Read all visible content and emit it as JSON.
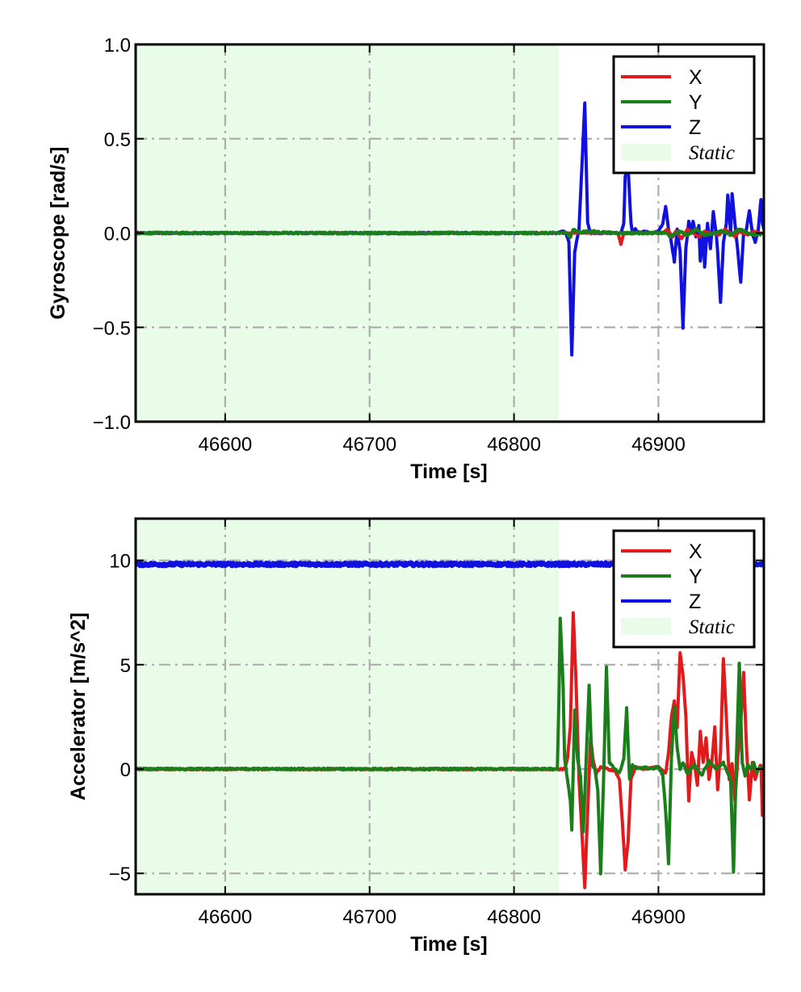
{
  "chart_data": [
    {
      "type": "line",
      "xlabel": "Time [s]",
      "ylabel": "Gyroscope [rad/s]",
      "xlim": [
        46538,
        46973
      ],
      "ylim": [
        -1.0,
        1.0
      ],
      "xticks": [
        46600,
        46700,
        46800,
        46900
      ],
      "xtick_labels": [
        "46600",
        "46700",
        "46800",
        "46900"
      ],
      "yticks": [
        -1.0,
        -0.5,
        0.0,
        0.5,
        1.0
      ],
      "ytick_labels": [
        "−1.0",
        "−0.5",
        "0.0",
        "0.5",
        "1.0"
      ],
      "grid": true,
      "legend_position": "top-right",
      "static_region": {
        "label": "Static",
        "x_start": 46538,
        "x_end": 46831,
        "color": "#e8fce8"
      },
      "series": [
        {
          "name": "X",
          "color": "#e31a1c",
          "x": [
            46538,
            46872,
            46874,
            46876,
            46878,
            46903,
            46906,
            46910,
            46912,
            46916,
            46920,
            46924,
            46928,
            46932,
            46936,
            46942,
            46946,
            46950,
            46953,
            46956,
            46958,
            46962,
            46966,
            46970,
            46973
          ],
          "y": [
            0.0,
            0.0,
            -0.06,
            0.0,
            0.0,
            0.0,
            0.02,
            -0.02,
            0.01,
            -0.03,
            0.02,
            0.0,
            -0.02,
            0.01,
            0.0,
            -0.01,
            0.02,
            0.0,
            -0.02,
            0.01,
            0.0,
            -0.01,
            0.01,
            0.0,
            0.0
          ]
        },
        {
          "name": "Y",
          "color": "#1a7f1a",
          "x": [
            46538,
            46836,
            46839,
            46841,
            46846,
            46850,
            46870,
            46905,
            46909,
            46914,
            46920,
            46926,
            46932,
            46938,
            46944,
            46950,
            46956,
            46962,
            46968,
            46973
          ],
          "y": [
            0.0,
            0.0,
            -0.02,
            0.02,
            0.0,
            0.01,
            0.0,
            0.0,
            -0.02,
            0.01,
            -0.01,
            0.02,
            -0.01,
            0.0,
            0.01,
            -0.01,
            0.02,
            0.0,
            -0.01,
            0.0
          ],
          "noise": 0.005
        },
        {
          "name": "Z",
          "color": "#1010e0",
          "x": [
            46538,
            46831,
            46833,
            46836,
            46838,
            46840,
            46842,
            46845,
            46847,
            46849,
            46851,
            46853,
            46874,
            46876,
            46877,
            46879,
            46881,
            46882,
            46884,
            46886,
            46890,
            46895,
            46900,
            46903,
            46905,
            46907,
            46909,
            46911,
            46913,
            46915,
            46917,
            46919,
            46921,
            46923,
            46924,
            46926,
            46928,
            46929,
            46931,
            46932,
            46934,
            46936,
            46938,
            46940,
            46941,
            46943,
            46945,
            46947,
            46948,
            46950,
            46951,
            46953,
            46955,
            46957,
            46959,
            46961,
            46963,
            46965,
            46967,
            46969,
            46971,
            46972,
            46973
          ],
          "y": [
            0.0,
            0.0,
            0.01,
            0.0,
            -0.05,
            -0.65,
            -0.1,
            0.02,
            0.35,
            0.69,
            0.05,
            0.0,
            0.0,
            0.05,
            0.3,
            0.35,
            0.05,
            0.0,
            0.02,
            0.0,
            0.01,
            0.0,
            0.01,
            0.05,
            0.14,
            0.02,
            -0.05,
            -0.15,
            0.02,
            -0.1,
            -0.5,
            -0.08,
            0.06,
            0.02,
            0.06,
            -0.02,
            0.04,
            -0.15,
            0.0,
            -0.18,
            0.05,
            -0.08,
            0.11,
            0.0,
            -0.1,
            -0.37,
            -0.05,
            0.05,
            0.2,
            0.0,
            0.21,
            0.05,
            -0.1,
            -0.26,
            0.0,
            0.02,
            0.12,
            0.0,
            -0.05,
            0.01,
            0.18,
            0.05,
            0.02
          ],
          "noise": 0.004
        }
      ]
    },
    {
      "type": "line",
      "xlabel": "Time [s]",
      "ylabel": "Accelerator [m/s^2]",
      "xlim": [
        46538,
        46973
      ],
      "ylim": [
        -6.0,
        12.0
      ],
      "xticks": [
        46600,
        46700,
        46800,
        46900
      ],
      "xtick_labels": [
        "46600",
        "46700",
        "46800",
        "46900"
      ],
      "yticks": [
        -5,
        0,
        5,
        10
      ],
      "ytick_labels": [
        "−5",
        "0",
        "5",
        "10"
      ],
      "grid": true,
      "legend_position": "top-right",
      "static_region": {
        "label": "Static",
        "x_start": 46538,
        "x_end": 46831,
        "color": "#e8fce8"
      },
      "series": [
        {
          "name": "X",
          "color": "#e31a1c",
          "x": [
            46538,
            46835,
            46837,
            46839,
            46841,
            46843,
            46845,
            46847,
            46849,
            46851,
            46853,
            46855,
            46857,
            46860,
            46865,
            46870,
            46873,
            46875,
            46877,
            46879,
            46881,
            46884,
            46890,
            46900,
            46905,
            46907,
            46909,
            46911,
            46913,
            46915,
            46917,
            46919,
            46921,
            46923,
            46925,
            46927,
            46929,
            46931,
            46933,
            46935,
            46937,
            46939,
            46941,
            46943,
            46945,
            46947,
            46949,
            46951,
            46953,
            46955,
            46957,
            46959,
            46961,
            46963,
            46965,
            46967,
            46969,
            46971,
            46972,
            46973
          ],
          "y": [
            0.0,
            0.0,
            0.5,
            2.0,
            7.5,
            4.0,
            -0.5,
            -3.0,
            -5.7,
            -2.0,
            1.5,
            0.3,
            -0.2,
            0.1,
            0.0,
            -0.1,
            -0.5,
            -2.5,
            -4.8,
            -3.5,
            -0.5,
            0.1,
            0.0,
            0.1,
            -0.2,
            0.8,
            2.5,
            3.3,
            2.0,
            5.6,
            4.5,
            2.5,
            -1.5,
            0.8,
            0.2,
            -0.8,
            1.8,
            0.3,
            1.5,
            -0.5,
            0.3,
            2.0,
            -1.0,
            0.8,
            5.3,
            2.5,
            -0.5,
            0.3,
            -1.5,
            0.6,
            2.2,
            4.6,
            1.0,
            -1.5,
            0.3,
            -0.5,
            0.0,
            0.2,
            -2.2,
            -1.2
          ],
          "noise": 0.04
        },
        {
          "name": "Y",
          "color": "#1a7f1a",
          "x": [
            46538,
            46830,
            46831,
            46832,
            46834,
            46835,
            46837,
            46839,
            46840,
            46842,
            46844,
            46846,
            46848,
            46850,
            46852,
            46854,
            46856,
            46858,
            46860,
            46862,
            46864,
            46866,
            46870,
            46873,
            46876,
            46878,
            46880,
            46882,
            46885,
            46890,
            46895,
            46900,
            46903,
            46905,
            46907,
            46909,
            46911,
            46913,
            46915,
            46917,
            46920,
            46925,
            46930,
            46935,
            46940,
            46945,
            46950,
            46952,
            46954,
            46956,
            46958,
            46960,
            46962,
            46964,
            46966,
            46968,
            46970,
            46973
          ],
          "y": [
            0.0,
            0.0,
            3.0,
            7.2,
            4.0,
            0.5,
            -0.5,
            -1.5,
            -2.9,
            2.8,
            0.5,
            -0.3,
            -3.0,
            0.5,
            4.0,
            0.2,
            0.0,
            -1.0,
            -5.0,
            -0.5,
            4.9,
            0.3,
            0.0,
            -0.2,
            0.5,
            2.9,
            -0.5,
            0.2,
            0.0,
            0.1,
            0.0,
            0.1,
            -0.3,
            -2.0,
            -4.5,
            0.5,
            3.0,
            1.0,
            0.0,
            0.3,
            -0.2,
            0.2,
            -0.3,
            0.4,
            0.0,
            0.3,
            -0.5,
            -4.9,
            0.5,
            5.1,
            0.3,
            -0.3,
            0.2,
            0.0,
            0.3,
            -0.2,
            0.1,
            0.0
          ],
          "noise": 0.04
        },
        {
          "name": "Z",
          "color": "#1010e0",
          "x": [
            46538,
            46973
          ],
          "y": [
            9.81,
            9.81
          ],
          "noise": 0.07
        }
      ]
    }
  ],
  "legend": {
    "entries": [
      {
        "label": "X",
        "color": "#e31a1c"
      },
      {
        "label": "Y",
        "color": "#1a7f1a"
      },
      {
        "label": "Z",
        "color": "#1010e0"
      }
    ],
    "static_label": "Static",
    "static_color": "#e8fce8"
  }
}
